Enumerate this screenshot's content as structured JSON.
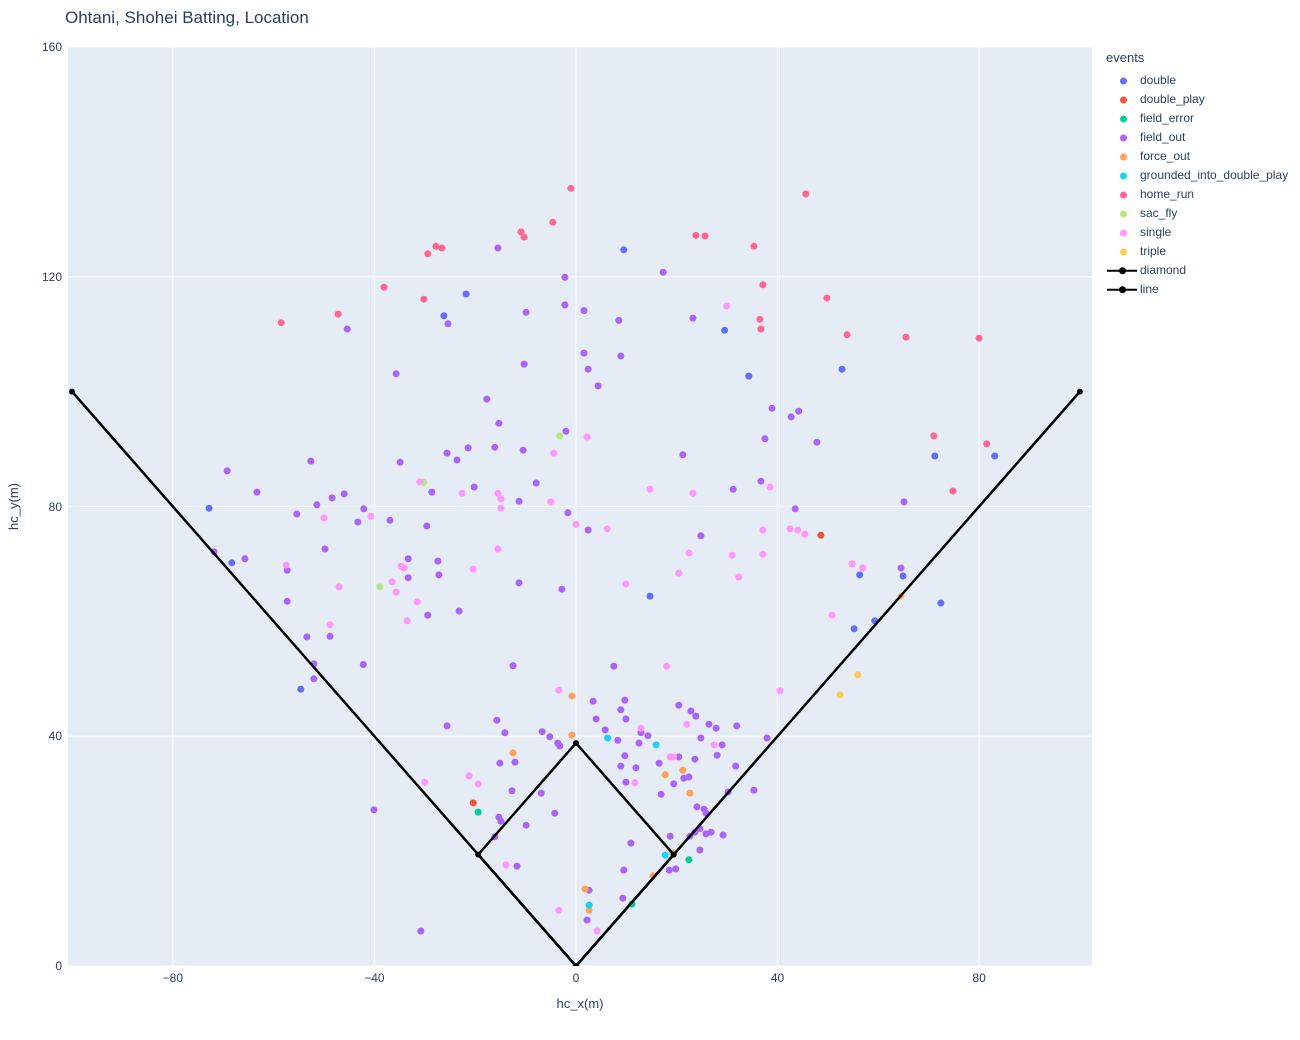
{
  "title": "Ohtani, Shohei Batting, Location",
  "legend": {
    "title": "events"
  },
  "chart_data": {
    "type": "scatter",
    "title": "Ohtani, Shohei Batting, Location",
    "xlabel": "hc_x(m)",
    "ylabel": "hc_y(m)",
    "xlim": [
      -100.8,
      102.4
    ],
    "ylim": [
      0,
      160
    ],
    "grid": true,
    "grid_color": "#ffffff",
    "plot_bg": "#E5ECF6",
    "legend_position": "right",
    "x_ticks": {
      "values": [
        -80,
        -40,
        0,
        40,
        80
      ],
      "labels": [
        "−80",
        "−40",
        "0",
        "40",
        "80"
      ]
    },
    "y_ticks": {
      "values": [
        0,
        40,
        80,
        120,
        160
      ],
      "labels": [
        "0",
        "40",
        "80",
        "120",
        "160"
      ]
    },
    "marker_radius": 3.5,
    "series": [
      {
        "name": "double",
        "color": "#636EFA",
        "points": [
          [
            9.5,
            124.7
          ],
          [
            -21.8,
            117.0
          ],
          [
            -26.2,
            113.2
          ],
          [
            29.5,
            110.7
          ],
          [
            34.3,
            102.7
          ],
          [
            52.8,
            103.9
          ],
          [
            -72.8,
            79.7
          ],
          [
            -68.3,
            70.2
          ],
          [
            71.2,
            88.8
          ],
          [
            83.1,
            88.8
          ],
          [
            14.7,
            64.4
          ],
          [
            56.3,
            68.1
          ],
          [
            64.9,
            67.9
          ],
          [
            72.4,
            63.2
          ],
          [
            59.3,
            60.1
          ],
          [
            55.2,
            58.7
          ],
          [
            -54.6,
            48.2
          ]
        ]
      },
      {
        "name": "double_play",
        "color": "#EF553B",
        "points": [
          [
            48.6,
            75.0
          ],
          [
            -20.4,
            28.4
          ]
        ]
      },
      {
        "name": "field_error",
        "color": "#00CC96",
        "points": [
          [
            -19.4,
            26.8
          ],
          [
            22.4,
            18.5
          ],
          [
            11.1,
            10.8
          ]
        ]
      },
      {
        "name": "field_out",
        "color": "#AB63FA",
        "points": [
          [
            -45.4,
            110.9
          ],
          [
            -15.5,
            125.0
          ],
          [
            17.3,
            120.8
          ],
          [
            -2.2,
            119.9
          ],
          [
            -25.4,
            111.8
          ],
          [
            -9.9,
            113.8
          ],
          [
            -2.2,
            115.1
          ],
          [
            1.6,
            114.1
          ],
          [
            8.5,
            112.4
          ],
          [
            23.2,
            112.8
          ],
          [
            1.6,
            106.7
          ],
          [
            8.9,
            106.2
          ],
          [
            -35.7,
            103.1
          ],
          [
            -10.3,
            104.8
          ],
          [
            2.4,
            103.9
          ],
          [
            4.4,
            101.0
          ],
          [
            -17.7,
            98.7
          ],
          [
            38.9,
            97.1
          ],
          [
            44.2,
            96.6
          ],
          [
            42.7,
            95.6
          ],
          [
            -15.3,
            94.5
          ],
          [
            -2.0,
            93.1
          ],
          [
            37.5,
            91.8
          ],
          [
            47.8,
            91.2
          ],
          [
            -16.1,
            90.3
          ],
          [
            -21.4,
            90.2
          ],
          [
            -25.6,
            89.3
          ],
          [
            -23.6,
            88.1
          ],
          [
            -10.5,
            89.8
          ],
          [
            21.2,
            89.0
          ],
          [
            -52.6,
            87.9
          ],
          [
            -34.9,
            87.7
          ],
          [
            -69.2,
            86.2
          ],
          [
            36.7,
            84.4
          ],
          [
            -20.2,
            83.4
          ],
          [
            -7.9,
            84.1
          ],
          [
            -28.6,
            82.5
          ],
          [
            -63.3,
            82.5
          ],
          [
            -48.4,
            81.5
          ],
          [
            -46.0,
            82.2
          ],
          [
            31.2,
            83.0
          ],
          [
            -51.4,
            80.3
          ],
          [
            65.1,
            80.8
          ],
          [
            -42.1,
            79.6
          ],
          [
            43.5,
            79.6
          ],
          [
            -11.3,
            80.9
          ],
          [
            -55.4,
            78.7
          ],
          [
            -1.6,
            78.9
          ],
          [
            -43.3,
            77.3
          ],
          [
            -36.9,
            77.6
          ],
          [
            -29.6,
            76.6
          ],
          [
            2.4,
            75.9
          ],
          [
            24.8,
            74.9
          ],
          [
            -49.8,
            72.6
          ],
          [
            -71.8,
            72.1
          ],
          [
            -65.7,
            70.9
          ],
          [
            -33.3,
            70.9
          ],
          [
            -27.4,
            70.5
          ],
          [
            64.5,
            69.3
          ],
          [
            -57.3,
            68.9
          ],
          [
            -33.3,
            67.6
          ],
          [
            -27.2,
            68.1
          ],
          [
            -11.3,
            66.7
          ],
          [
            -2.8,
            65.6
          ],
          [
            -57.3,
            63.5
          ],
          [
            -23.2,
            61.8
          ],
          [
            -29.4,
            61.1
          ],
          [
            -53.4,
            57.3
          ],
          [
            -48.8,
            57.4
          ],
          [
            -52.0,
            52.6
          ],
          [
            -42.2,
            52.5
          ],
          [
            -12.5,
            52.3
          ],
          [
            7.5,
            52.2
          ],
          [
            -52.0,
            50.0
          ],
          [
            3.4,
            46.1
          ],
          [
            9.7,
            46.3
          ],
          [
            20.4,
            45.4
          ],
          [
            8.9,
            44.6
          ],
          [
            22.8,
            44.4
          ],
          [
            23.8,
            43.5
          ],
          [
            4.0,
            43.0
          ],
          [
            9.9,
            43.0
          ],
          [
            -25.6,
            41.8
          ],
          [
            -15.7,
            42.8
          ],
          [
            26.4,
            42.1
          ],
          [
            27.8,
            41.4
          ],
          [
            31.9,
            41.8
          ],
          [
            -14.1,
            40.6
          ],
          [
            -6.7,
            40.8
          ],
          [
            5.8,
            41.1
          ],
          [
            12.9,
            40.6
          ],
          [
            14.3,
            40.1
          ],
          [
            -5.2,
            39.9
          ],
          [
            8.3,
            39.3
          ],
          [
            -3.6,
            38.8
          ],
          [
            -3.2,
            38.3
          ],
          [
            24.8,
            39.7
          ],
          [
            29.0,
            38.5
          ],
          [
            12.5,
            38.8
          ],
          [
            9.7,
            36.6
          ],
          [
            20.4,
            36.4
          ],
          [
            16.5,
            35.3
          ],
          [
            8.9,
            34.8
          ],
          [
            11.9,
            34.5
          ],
          [
            23.6,
            36.0
          ],
          [
            28.0,
            36.7
          ],
          [
            31.7,
            34.8
          ],
          [
            -12.1,
            35.5
          ],
          [
            -15.1,
            35.3
          ],
          [
            9.9,
            32.0
          ],
          [
            21.4,
            32.7
          ],
          [
            22.4,
            32.9
          ],
          [
            16.9,
            29.9
          ],
          [
            19.4,
            31.7
          ],
          [
            30.2,
            30.3
          ],
          [
            35.3,
            30.6
          ],
          [
            -12.7,
            30.5
          ],
          [
            -6.9,
            30.1
          ],
          [
            24.0,
            27.7
          ],
          [
            25.4,
            27.3
          ],
          [
            25.8,
            26.6
          ],
          [
            -40.1,
            27.2
          ],
          [
            -4.2,
            26.6
          ],
          [
            -15.3,
            25.9
          ],
          [
            -14.9,
            25.2
          ],
          [
            -9.9,
            24.5
          ],
          [
            -16.1,
            22.5
          ],
          [
            37.9,
            39.7
          ],
          [
            18.7,
            22.6
          ],
          [
            22.6,
            22.6
          ],
          [
            23.6,
            23.3
          ],
          [
            24.6,
            23.9
          ],
          [
            25.8,
            23.0
          ],
          [
            26.8,
            23.3
          ],
          [
            29.2,
            22.8
          ],
          [
            10.9,
            21.4
          ],
          [
            24.6,
            20.2
          ],
          [
            19.8,
            16.9
          ],
          [
            18.5,
            16.7
          ],
          [
            9.5,
            16.7
          ],
          [
            -11.7,
            17.4
          ],
          [
            9.3,
            11.8
          ],
          [
            2.6,
            13.2
          ],
          [
            2.2,
            8.0
          ],
          [
            -30.8,
            6.1
          ]
        ]
      },
      {
        "name": "force_out",
        "color": "#FFA15A",
        "points": [
          [
            -0.8,
            47.0
          ],
          [
            -0.8,
            40.2
          ],
          [
            -12.5,
            37.1
          ],
          [
            21.2,
            34.1
          ],
          [
            17.7,
            33.3
          ],
          [
            22.6,
            30.1
          ],
          [
            19.2,
            19.7
          ],
          [
            15.3,
            15.7
          ],
          [
            1.8,
            13.4
          ],
          [
            2.6,
            9.7
          ]
        ]
      },
      {
        "name": "grounded_into_double_play",
        "color": "#19D3F3",
        "points": [
          [
            6.3,
            39.7
          ],
          [
            15.9,
            38.5
          ],
          [
            17.7,
            19.3
          ],
          [
            2.6,
            10.6
          ]
        ]
      },
      {
        "name": "home_run",
        "color": "#FF6692",
        "points": [
          [
            -1.0,
            135.4
          ],
          [
            45.6,
            134.4
          ],
          [
            -4.6,
            129.5
          ],
          [
            -10.9,
            127.8
          ],
          [
            -10.3,
            126.9
          ],
          [
            23.8,
            127.2
          ],
          [
            25.6,
            127.1
          ],
          [
            -27.8,
            125.3
          ],
          [
            -26.6,
            125.0
          ],
          [
            -29.4,
            124.0
          ],
          [
            35.3,
            125.3
          ],
          [
            -38.1,
            118.2
          ],
          [
            37.1,
            118.6
          ],
          [
            -30.2,
            116.1
          ],
          [
            49.8,
            116.3
          ],
          [
            -47.2,
            113.5
          ],
          [
            -58.5,
            112.0
          ],
          [
            36.5,
            112.6
          ],
          [
            36.7,
            110.9
          ],
          [
            53.8,
            109.9
          ],
          [
            65.5,
            109.5
          ],
          [
            80.0,
            109.3
          ],
          [
            71.0,
            92.3
          ],
          [
            81.5,
            90.9
          ],
          [
            74.8,
            82.7
          ]
        ]
      },
      {
        "name": "sac_fly",
        "color": "#B6E880",
        "points": [
          [
            -3.2,
            92.3
          ],
          [
            -30.2,
            84.2
          ],
          [
            -38.9,
            66.0
          ]
        ]
      },
      {
        "name": "single",
        "color": "#FF97FF",
        "points": [
          [
            29.9,
            114.9
          ],
          [
            2.2,
            92.1
          ],
          [
            -4.4,
            89.3
          ],
          [
            -31.0,
            84.3
          ],
          [
            14.7,
            83.0
          ],
          [
            38.5,
            83.4
          ],
          [
            -22.6,
            82.3
          ],
          [
            -15.5,
            82.3
          ],
          [
            23.2,
            82.3
          ],
          [
            -14.9,
            81.3
          ],
          [
            -5.0,
            80.8
          ],
          [
            -14.9,
            79.7
          ],
          [
            -50.0,
            78.0
          ],
          [
            -40.7,
            78.3
          ],
          [
            0.0,
            76.9
          ],
          [
            6.2,
            76.1
          ],
          [
            42.5,
            76.1
          ],
          [
            44.0,
            75.9
          ],
          [
            37.1,
            75.9
          ],
          [
            45.4,
            75.2
          ],
          [
            -15.5,
            72.6
          ],
          [
            22.4,
            71.9
          ],
          [
            31.0,
            71.5
          ],
          [
            37.1,
            71.7
          ],
          [
            -57.5,
            69.8
          ],
          [
            -34.7,
            69.6
          ],
          [
            -34.1,
            69.3
          ],
          [
            -20.4,
            69.1
          ],
          [
            54.8,
            70.0
          ],
          [
            56.9,
            69.3
          ],
          [
            20.4,
            68.4
          ],
          [
            32.3,
            67.7
          ],
          [
            -36.5,
            66.9
          ],
          [
            9.9,
            66.5
          ],
          [
            -47.0,
            66.0
          ],
          [
            -35.7,
            65.1
          ],
          [
            -31.5,
            63.4
          ],
          [
            50.8,
            61.1
          ],
          [
            -33.5,
            60.1
          ],
          [
            -48.8,
            59.4
          ],
          [
            18.0,
            52.2
          ],
          [
            -3.4,
            48.0
          ],
          [
            40.5,
            47.9
          ],
          [
            22.0,
            42.1
          ],
          [
            12.9,
            41.4
          ],
          [
            27.4,
            38.5
          ],
          [
            18.7,
            36.4
          ],
          [
            19.4,
            36.4
          ],
          [
            -21.2,
            33.1
          ],
          [
            11.7,
            31.9
          ],
          [
            -19.4,
            31.7
          ],
          [
            -30.0,
            32.0
          ],
          [
            -13.9,
            17.6
          ],
          [
            -3.4,
            9.7
          ],
          [
            4.2,
            6.1
          ]
        ]
      },
      {
        "name": "triple",
        "color": "#FECB52",
        "points": [
          [
            64.5,
            64.4
          ],
          [
            55.9,
            50.7
          ],
          [
            52.4,
            47.2
          ]
        ]
      }
    ],
    "shapes": [
      {
        "name": "diamond",
        "color": "#000000",
        "line_width": 2.5,
        "points": [
          [
            0,
            0
          ],
          [
            19.4,
            19.4
          ],
          [
            0,
            38.8
          ],
          [
            -19.4,
            19.4
          ],
          [
            0,
            0
          ]
        ]
      },
      {
        "name": "line",
        "color": "#000000",
        "line_width": 2.5,
        "points": [
          [
            -100,
            100
          ],
          [
            0,
            0
          ],
          [
            100,
            100
          ]
        ]
      }
    ]
  }
}
